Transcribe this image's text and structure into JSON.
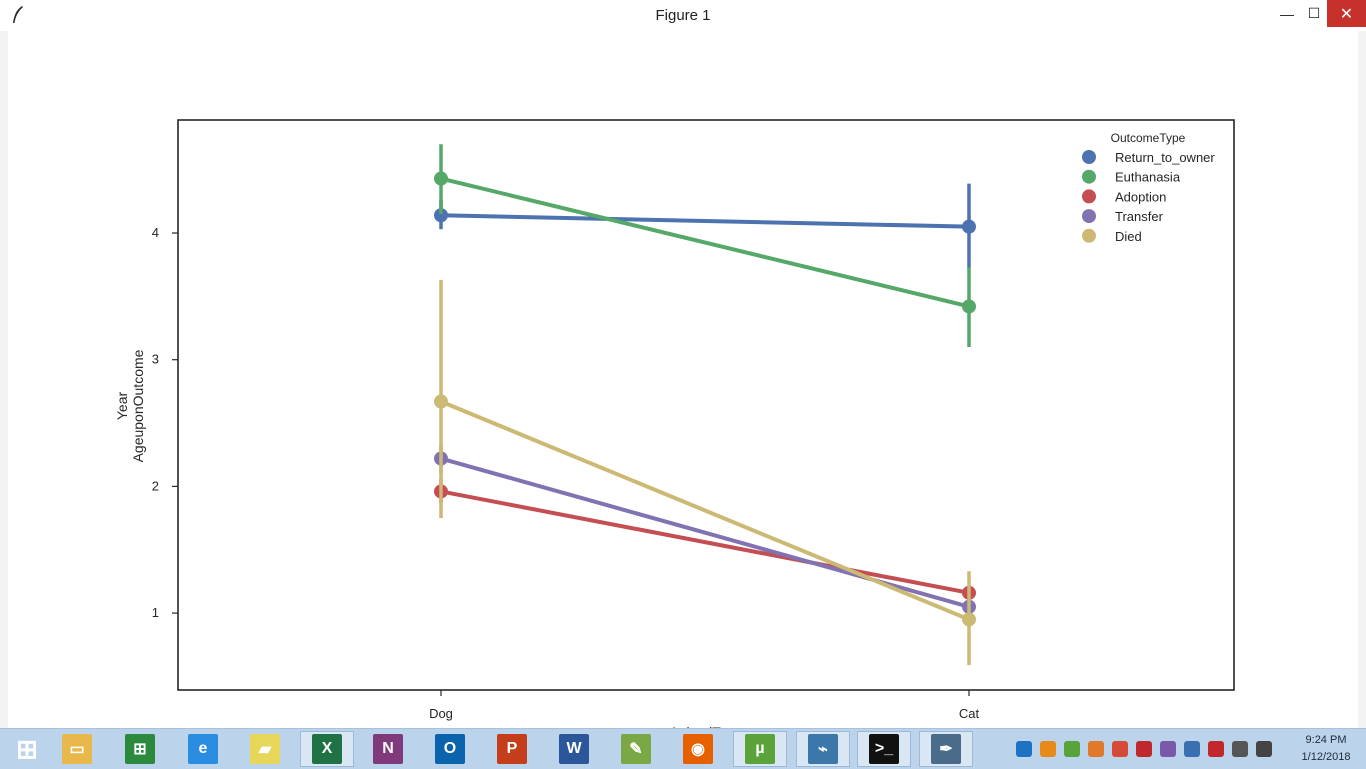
{
  "window": {
    "title": "Figure 1",
    "min_glyph": "—",
    "max_glyph": "☐",
    "close_glyph": "✕"
  },
  "chart_data": {
    "type": "line",
    "categories": [
      "Dog",
      "Cat"
    ],
    "xlabel": "AnimalType",
    "ylabel_lines": [
      "Year",
      "AgeuponOutcome"
    ],
    "yticks": [
      "1",
      "2",
      "3",
      "4"
    ],
    "ylim": [
      0.4,
      4.9
    ],
    "grid": false,
    "legend_title": "OutcomeType",
    "legend_position": "top-right",
    "series": [
      {
        "name": "Return_to_owner",
        "color": "#4c72b0",
        "values": [
          4.14,
          4.05
        ],
        "ci": [
          [
            4.03,
            4.26
          ],
          [
            3.72,
            4.39
          ]
        ]
      },
      {
        "name": "Euthanasia",
        "color": "#55a868",
        "values": [
          4.43,
          3.42
        ],
        "ci": [
          [
            4.15,
            4.7
          ],
          [
            3.1,
            3.73
          ]
        ]
      },
      {
        "name": "Adoption",
        "color": "#c44e52",
        "values": [
          1.96,
          1.16
        ],
        "ci": [
          [
            1.87,
            2.06
          ],
          [
            1.1,
            1.22
          ]
        ]
      },
      {
        "name": "Transfer",
        "color": "#8172b2",
        "values": [
          2.22,
          1.05
        ],
        "ci": [
          [
            2.11,
            2.32
          ],
          [
            0.99,
            1.11
          ]
        ]
      },
      {
        "name": "Died",
        "color": "#ccb974",
        "values": [
          2.67,
          0.95
        ],
        "ci": [
          [
            1.75,
            3.63
          ],
          [
            0.59,
            1.33
          ]
        ]
      }
    ]
  },
  "taskbar": {
    "items": [
      {
        "name": "start-button",
        "glyph": "⊞",
        "color": "#1d72c4"
      },
      {
        "name": "file-explorer-icon",
        "glyph": "▭",
        "color": "#e8b84a"
      },
      {
        "name": "store-icon",
        "glyph": "⊞",
        "color": "#2b8a3e"
      },
      {
        "name": "internet-explorer-icon",
        "glyph": "e",
        "color": "#2a8de0"
      },
      {
        "name": "sticky-notes-icon",
        "glyph": "▰",
        "color": "#e6d65a"
      },
      {
        "name": "excel-icon",
        "glyph": "X",
        "color": "#1f7244"
      },
      {
        "name": "onenote-icon",
        "glyph": "N",
        "color": "#80397b"
      },
      {
        "name": "outlook-icon",
        "glyph": "O",
        "color": "#0a64ad"
      },
      {
        "name": "powerpoint-icon",
        "glyph": "P",
        "color": "#c43e1c"
      },
      {
        "name": "word-icon",
        "glyph": "W",
        "color": "#2b579a"
      },
      {
        "name": "notepad-plus-icon",
        "glyph": "✎",
        "color": "#7aa845"
      },
      {
        "name": "firefox-icon",
        "glyph": "◉",
        "color": "#e66000"
      },
      {
        "name": "utorrent-icon",
        "glyph": "µ",
        "color": "#59a33a"
      },
      {
        "name": "python-icon",
        "glyph": "⌁",
        "color": "#3b77a8"
      },
      {
        "name": "command-prompt-icon",
        "glyph": ">_",
        "color": "#111111"
      },
      {
        "name": "feather-icon",
        "glyph": "✒",
        "color": "#4a6b8a"
      }
    ]
  },
  "tray": {
    "time": "9:24 PM",
    "date": "1/12/2018",
    "icons": [
      "help-icon",
      "vlc-icon",
      "utorrent-tray-icon",
      "stack-icon",
      "chrome-icon",
      "flash-icon",
      "nx-icon",
      "display-icon",
      "network-icon",
      "battery-icon",
      "volume-icon"
    ]
  }
}
